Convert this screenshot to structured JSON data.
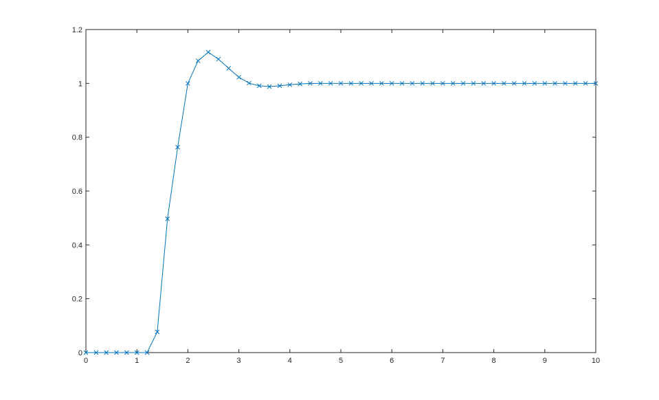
{
  "chart_data": {
    "type": "line",
    "title": "",
    "xlabel": "",
    "ylabel": "",
    "xlim": [
      0,
      10
    ],
    "ylim": [
      0,
      1.2
    ],
    "xticks": [
      "0",
      "1",
      "2",
      "3",
      "4",
      "5",
      "6",
      "7",
      "8",
      "9",
      "10"
    ],
    "yticks": [
      "0",
      "0.2",
      "0.4",
      "0.6",
      "0.8",
      "1",
      "1.2"
    ],
    "grid": false,
    "marker": "x",
    "line_color": "#0072BD",
    "series": [
      {
        "x": [
          0,
          0.2,
          0.4,
          0.6,
          0.8,
          1.0,
          1.2,
          1.4,
          1.6,
          1.8,
          2.0,
          2.2,
          2.4,
          2.6,
          2.8,
          3.0,
          3.2,
          3.4,
          3.6,
          3.8,
          4.0,
          4.2,
          4.4,
          4.6,
          4.8,
          5.0,
          5.2,
          5.4,
          5.6,
          5.8,
          6.0,
          6.2,
          6.4,
          6.6,
          6.8,
          7.0,
          7.2,
          7.4,
          7.6,
          7.8,
          8.0,
          8.2,
          8.4,
          8.6,
          8.8,
          9.0,
          9.2,
          9.4,
          9.6,
          9.8,
          10.0
        ],
        "y": [
          0,
          0,
          0,
          0,
          0,
          0,
          0,
          0.077,
          0.497,
          0.763,
          1.0,
          1.084,
          1.116,
          1.09,
          1.056,
          1.023,
          1.001,
          0.991,
          0.988,
          0.991,
          0.995,
          0.998,
          1.0,
          1.0,
          1.0,
          1.0,
          1.0,
          1.0,
          1.0,
          1.0,
          1.0,
          1.0,
          1.0,
          1.0,
          1.0,
          1.0,
          1.0,
          1.0,
          1.0,
          1.0,
          1.0,
          1.0,
          1.0,
          1.0,
          1.0,
          1.0,
          1.0,
          1.0,
          1.0,
          1.0,
          1.0
        ]
      }
    ]
  }
}
